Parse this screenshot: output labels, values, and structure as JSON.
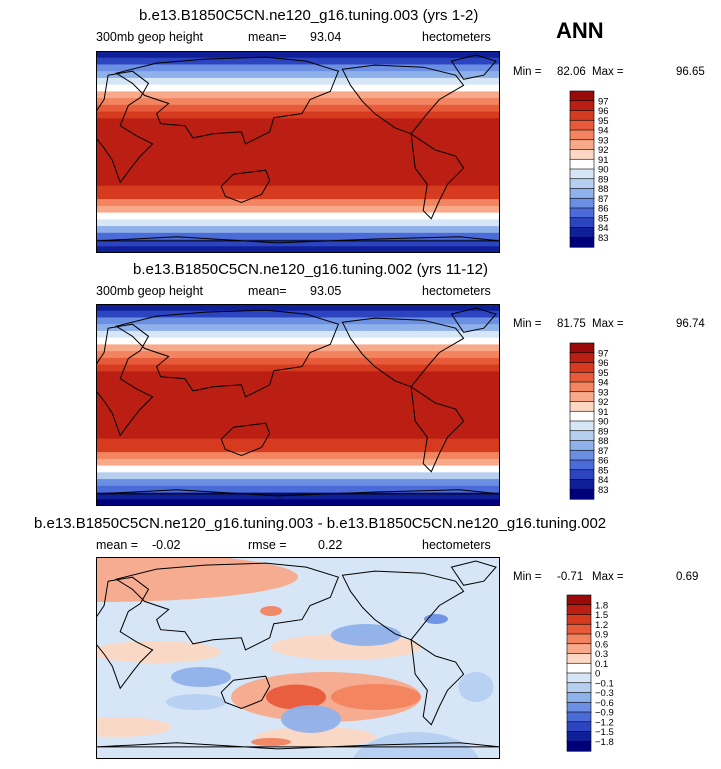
{
  "season": "ANN",
  "chart_data": [
    {
      "type": "heatmap",
      "title": "b.e13.B1850C5CN.ne120_g16.tuning.003 (yrs 1-2)",
      "variable": "300mb geop height",
      "mean_text": "mean=",
      "mean": "93.04",
      "units": "hectometers",
      "min_label": "Min =",
      "min": "82.06",
      "max_label": "Max =",
      "max": "96.65",
      "colorbar": [
        "97",
        "96",
        "95",
        "94",
        "93",
        "92",
        "91",
        "90",
        "89",
        "88",
        "87",
        "86",
        "85",
        "84",
        "83"
      ],
      "colors": [
        "#9b0a0a",
        "#bb1e12",
        "#d63a1f",
        "#e75a3a",
        "#f2845f",
        "#f8a98a",
        "#fcd7c3",
        "#ffffff",
        "#d6e6f6",
        "#b6cff0",
        "#8fb1ea",
        "#6b8fe3",
        "#4a6bd8",
        "#2d44c0",
        "#0f1f97",
        "#00007a"
      ],
      "lat_profile": [
        83.5,
        84.5,
        86.2,
        88,
        89.6,
        91,
        92.4,
        93.8,
        95,
        95.8,
        96.3,
        96.5,
        96.6,
        96.5,
        96.4,
        96.4,
        96.5,
        96.6,
        96.5,
        96.3,
        95.9,
        95.1,
        94,
        92.6,
        91,
        89.2,
        87.2,
        85.5,
        84.2,
        83.2
      ]
    },
    {
      "type": "heatmap",
      "title": "b.e13.B1850C5CN.ne120_g16.tuning.002 (yrs 11-12)",
      "variable": "300mb geop height",
      "mean_text": "mean=",
      "mean": "93.05",
      "units": "hectometers",
      "min_label": "Min =",
      "min": "81.75",
      "max_label": "Max =",
      "max": "96.74",
      "colorbar": [
        "97",
        "96",
        "95",
        "94",
        "93",
        "92",
        "91",
        "90",
        "89",
        "88",
        "87",
        "86",
        "85",
        "84",
        "83"
      ],
      "colors": [
        "#9b0a0a",
        "#bb1e12",
        "#d63a1f",
        "#e75a3a",
        "#f2845f",
        "#f8a98a",
        "#fcd7c3",
        "#ffffff",
        "#d6e6f6",
        "#b6cff0",
        "#8fb1ea",
        "#6b8fe3",
        "#4a6bd8",
        "#2d44c0",
        "#0f1f97",
        "#00007a"
      ],
      "lat_profile": [
        83.3,
        84.4,
        86.1,
        88,
        89.6,
        91,
        92.4,
        93.8,
        95,
        95.9,
        96.4,
        96.6,
        96.7,
        96.6,
        96.5,
        96.5,
        96.6,
        96.7,
        96.6,
        96.4,
        96,
        95.1,
        94,
        92.5,
        90.9,
        89,
        87,
        85.2,
        83.9,
        82.8
      ]
    },
    {
      "type": "heatmap",
      "title": "b.e13.B1850C5CN.ne120_g16.tuning.003 - b.e13.B1850C5CN.ne120_g16.tuning.002",
      "mean_text": "mean =",
      "mean": "-0.02",
      "rmse_text": "rmse =",
      "rmse": "0.22",
      "units": "hectometers",
      "min_label": "Min =",
      "min": "-0.71",
      "max_label": "Max =",
      "max": "0.69",
      "colorbar": [
        "1.8",
        "1.5",
        "1.2",
        "0.9",
        "0.6",
        "0.3",
        "0.1",
        "0",
        "−0.1",
        "−0.3",
        "−0.6",
        "−0.9",
        "−1.2",
        "−1.5",
        "−1.8"
      ],
      "colors": [
        "#9b0a0a",
        "#bb1e12",
        "#d63a1f",
        "#e75a3a",
        "#f2845f",
        "#f8a98a",
        "#fcd7c3",
        "#ffffff",
        "#d6e6f6",
        "#b6cff0",
        "#8fb1ea",
        "#6b8fe3",
        "#4a6bd8",
        "#2d44c0",
        "#0f1f97",
        "#00007a"
      ]
    }
  ]
}
